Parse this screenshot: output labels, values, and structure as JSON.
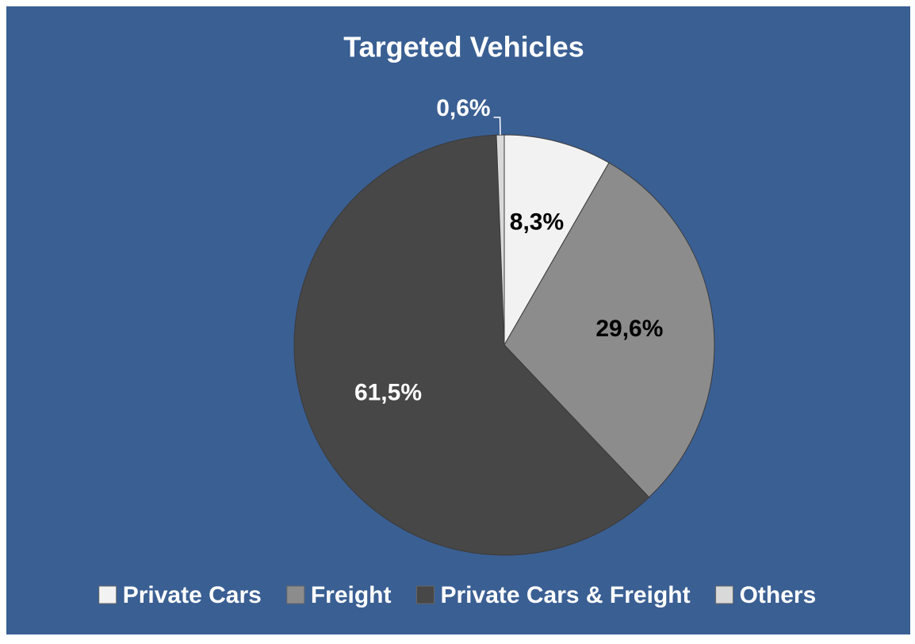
{
  "chart_data": {
    "type": "pie",
    "title": "Targeted Vehicles",
    "categories": [
      "Private Cars",
      "Freight",
      "Private Cars & Freight",
      "Others"
    ],
    "values": [
      8.3,
      29.6,
      61.5,
      0.6
    ],
    "value_labels": [
      "8,3%",
      "29,6%",
      "61,5%",
      "0,6%"
    ],
    "colors": [
      "#f2f2f2",
      "#8c8c8c",
      "#474747",
      "#d9d9d9"
    ],
    "legend": "bottom"
  }
}
